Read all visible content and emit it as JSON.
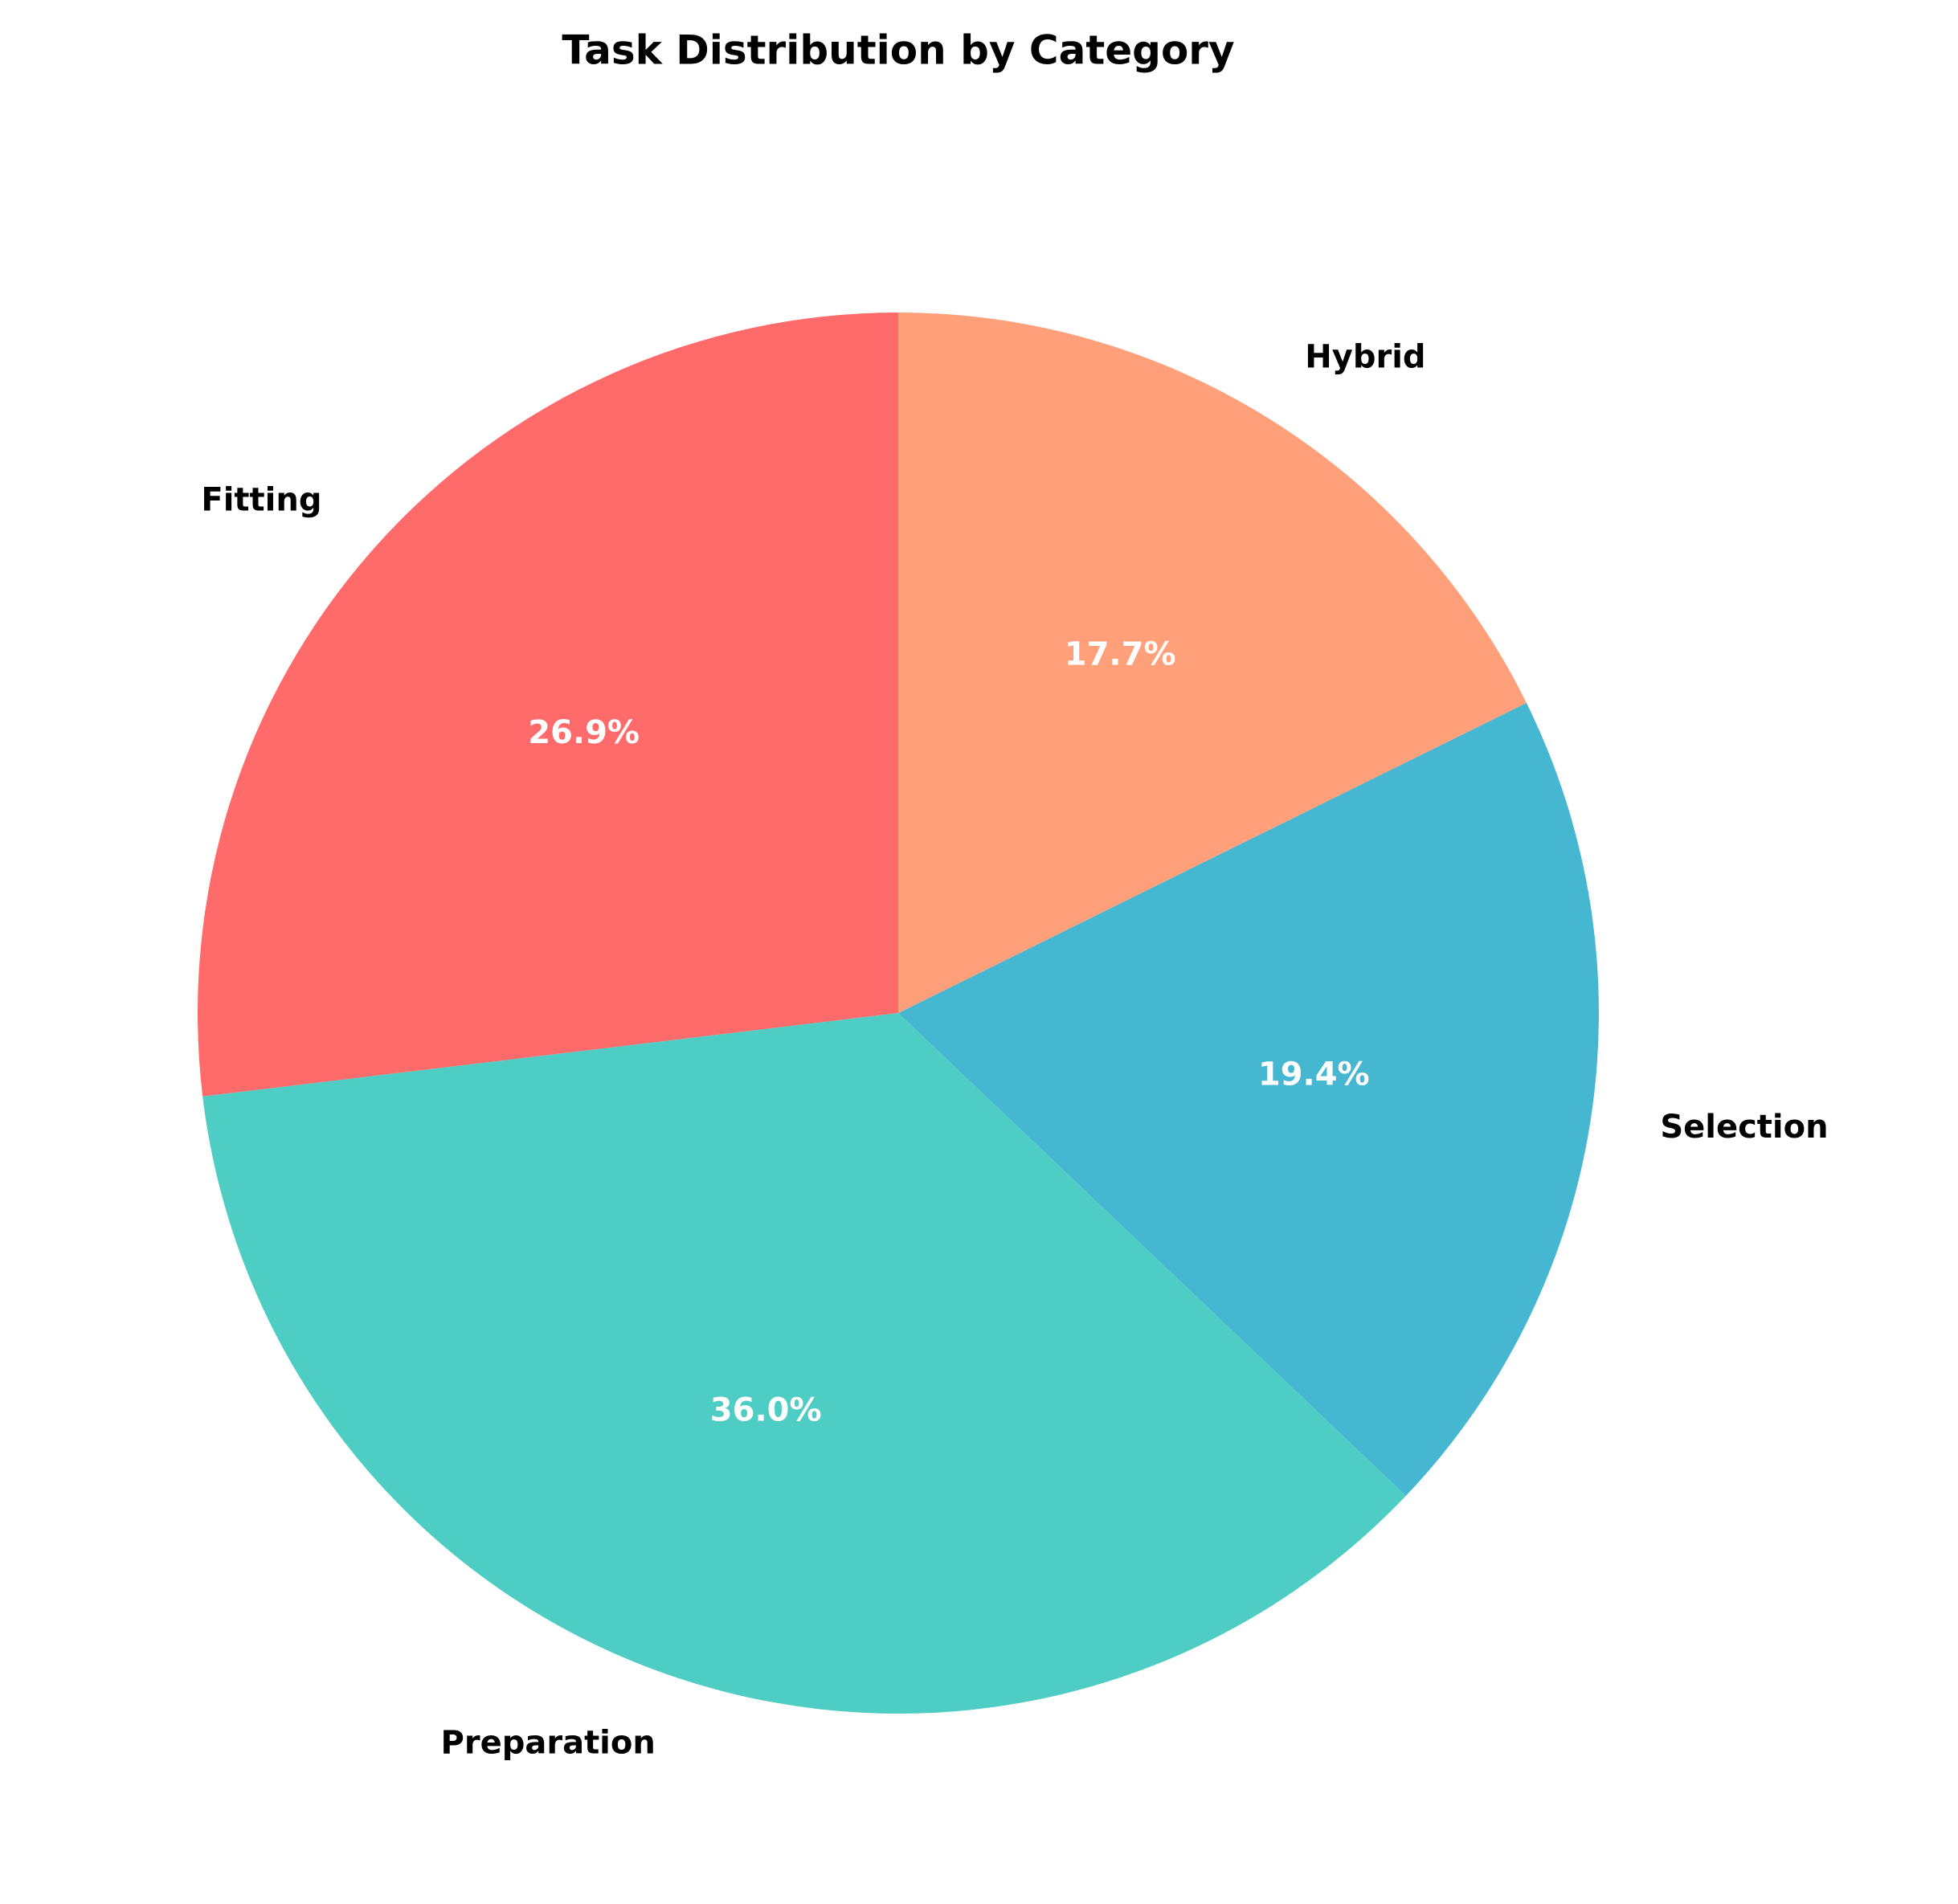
{
  "chart_data": {
    "type": "pie",
    "title": "Task Distribution by Category",
    "categories": [
      "Fitting",
      "Preparation",
      "Selection",
      "Hybrid"
    ],
    "values": [
      26.9,
      36.0,
      19.4,
      17.7
    ],
    "value_labels": [
      "26.9%",
      "36.0%",
      "19.4%",
      "17.7%"
    ],
    "colors": [
      "#FF6B6B",
      "#4ECDC4",
      "#45B7D1",
      "#FFA07A"
    ]
  }
}
